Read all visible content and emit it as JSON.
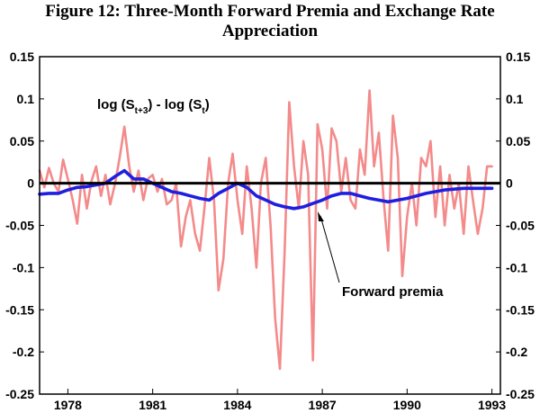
{
  "chart_data": {
    "type": "line",
    "title_line1": "Figure 12: Three-Month Forward Premia and Exchange Rate",
    "title_line2": "Appreciation",
    "y_ticks": [
      "0.15",
      "0.1",
      "0.05",
      "0",
      "-0.05",
      "-0.1",
      "-0.15",
      "-0.2",
      "-0.25"
    ],
    "y_tick_values": [
      0.15,
      0.1,
      0.05,
      0,
      -0.05,
      -0.1,
      -0.15,
      -0.2,
      -0.25
    ],
    "x_ticks": [
      "1978",
      "1981",
      "1984",
      "1987",
      "1990",
      "1993"
    ],
    "x_tick_values": [
      1978,
      1981,
      1984,
      1987,
      1990,
      1993
    ],
    "xlim": [
      1977.0,
      1993.3
    ],
    "ylim": [
      -0.25,
      0.15
    ],
    "label_appreciation_prefix": "log (S",
    "label_appreciation_sub1": "t+3",
    "label_appreciation_mid": ") - log (S",
    "label_appreciation_sub2": "t",
    "label_appreciation_suffix": ")",
    "label_forward": "Forward premia",
    "colors": {
      "appreciation": "#f48a8a",
      "forward": "#1f1fe0",
      "axis": "#000000"
    },
    "series": [
      {
        "key": "appreciation",
        "x": [
          1977.0,
          1977.17,
          1977.33,
          1977.5,
          1977.67,
          1977.83,
          1978.0,
          1978.17,
          1978.33,
          1978.5,
          1978.67,
          1978.83,
          1979.0,
          1979.17,
          1979.33,
          1979.5,
          1979.67,
          1979.83,
          1980.0,
          1980.17,
          1980.33,
          1980.5,
          1980.67,
          1980.83,
          1981.0,
          1981.17,
          1981.33,
          1981.5,
          1981.67,
          1981.83,
          1982.0,
          1982.17,
          1982.33,
          1982.5,
          1982.67,
          1982.83,
          1983.0,
          1983.17,
          1983.33,
          1983.5,
          1983.67,
          1983.83,
          1984.0,
          1984.17,
          1984.33,
          1984.5,
          1984.67,
          1984.83,
          1985.0,
          1985.17,
          1985.33,
          1985.5,
          1985.67,
          1985.83,
          1986.0,
          1986.17,
          1986.33,
          1986.5,
          1986.67,
          1986.83,
          1987.0,
          1987.17,
          1987.33,
          1987.5,
          1987.67,
          1987.83,
          1988.0,
          1988.17,
          1988.33,
          1988.5,
          1988.67,
          1988.83,
          1989.0,
          1989.17,
          1989.33,
          1989.5,
          1989.67,
          1989.83,
          1990.0,
          1990.17,
          1990.33,
          1990.5,
          1990.67,
          1990.83,
          1991.0,
          1991.17,
          1991.33,
          1991.5,
          1991.67,
          1991.83,
          1992.0,
          1992.17,
          1992.33,
          1992.5,
          1992.67,
          1992.83,
          1993.0
        ],
        "values": [
          0.015,
          -0.005,
          0.018,
          0.0,
          -0.01,
          0.028,
          0.005,
          -0.02,
          -0.048,
          0.01,
          -0.03,
          0.002,
          0.02,
          -0.015,
          0.01,
          -0.025,
          0.0,
          0.03,
          0.067,
          0.02,
          -0.01,
          0.015,
          -0.02,
          0.005,
          0.01,
          -0.01,
          0.005,
          -0.025,
          -0.02,
          0.0,
          -0.075,
          -0.04,
          -0.02,
          -0.06,
          -0.08,
          -0.03,
          0.03,
          -0.02,
          -0.127,
          -0.09,
          0.0,
          0.035,
          -0.02,
          -0.06,
          0.02,
          -0.03,
          -0.1,
          0.0,
          0.03,
          -0.05,
          -0.16,
          -0.22,
          -0.08,
          0.096,
          0.02,
          -0.03,
          0.05,
          0.01,
          -0.21,
          0.07,
          0.04,
          -0.03,
          0.065,
          0.05,
          -0.01,
          0.03,
          -0.02,
          -0.03,
          0.04,
          0.01,
          0.11,
          0.02,
          0.06,
          -0.02,
          -0.08,
          0.08,
          0.03,
          -0.11,
          -0.04,
          0.0,
          -0.05,
          0.03,
          0.02,
          0.05,
          -0.04,
          0.02,
          -0.05,
          0.01,
          -0.03,
          0.0,
          -0.06,
          0.02,
          -0.02,
          -0.06,
          -0.03,
          0.02,
          0.02
        ],
        "line_width": 2.6
      },
      {
        "key": "forward",
        "x": [
          1977.0,
          1977.33,
          1977.67,
          1978.0,
          1978.33,
          1978.67,
          1979.0,
          1979.33,
          1979.67,
          1980.0,
          1980.33,
          1980.67,
          1981.0,
          1981.33,
          1981.67,
          1982.0,
          1982.33,
          1982.67,
          1983.0,
          1983.33,
          1983.67,
          1984.0,
          1984.33,
          1984.67,
          1985.0,
          1985.33,
          1985.67,
          1986.0,
          1986.33,
          1986.67,
          1987.0,
          1987.33,
          1987.67,
          1988.0,
          1988.33,
          1988.67,
          1989.0,
          1989.33,
          1989.67,
          1990.0,
          1990.33,
          1990.67,
          1991.0,
          1991.33,
          1991.67,
          1992.0,
          1992.33,
          1992.67,
          1993.0
        ],
        "values": [
          -0.013,
          -0.012,
          -0.012,
          -0.008,
          -0.005,
          -0.004,
          -0.002,
          0.0,
          0.008,
          0.015,
          0.005,
          0.005,
          0.0,
          -0.005,
          -0.01,
          -0.012,
          -0.015,
          -0.018,
          -0.02,
          -0.012,
          -0.006,
          0.0,
          -0.005,
          -0.015,
          -0.02,
          -0.025,
          -0.028,
          -0.03,
          -0.028,
          -0.024,
          -0.02,
          -0.015,
          -0.012,
          -0.012,
          -0.015,
          -0.018,
          -0.02,
          -0.022,
          -0.02,
          -0.018,
          -0.015,
          -0.012,
          -0.01,
          -0.008,
          -0.007,
          -0.006,
          -0.006,
          -0.006,
          -0.006
        ],
        "line_width": 3.6
      }
    ]
  }
}
